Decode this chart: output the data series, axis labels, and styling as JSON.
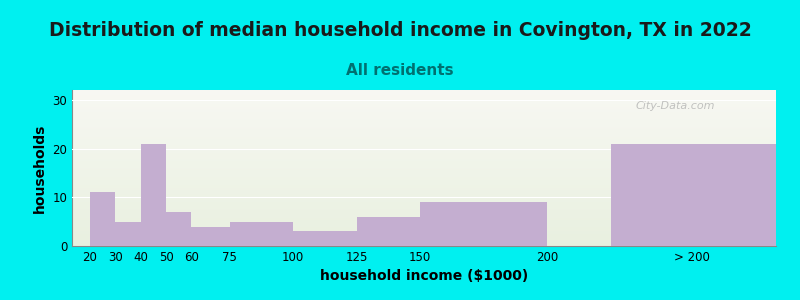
{
  "title": "Distribution of median household income in Covington, TX in 2022",
  "subtitle": "All residents",
  "xlabel": "household income ($1000)",
  "ylabel": "households",
  "categories": [
    "20",
    "30",
    "40",
    "50",
    "60",
    "75",
    "100",
    "125",
    "150",
    "200",
    "> 200"
  ],
  "values": [
    11,
    5,
    21,
    7,
    4,
    5,
    3,
    6,
    9,
    0,
    21
  ],
  "bar_color": "#c4aed0",
  "background_color": "#00f0f0",
  "ylim": [
    0,
    32
  ],
  "yticks": [
    0,
    10,
    20,
    30
  ],
  "title_fontsize": 13.5,
  "subtitle_fontsize": 11,
  "subtitle_color": "#007070",
  "axis_label_fontsize": 10,
  "tick_fontsize": 8.5,
  "watermark": "City-Data.com",
  "bar_positions": [
    20,
    30,
    40,
    50,
    60,
    75,
    100,
    125,
    150,
    200,
    225
  ],
  "bar_widths": [
    10,
    10,
    10,
    10,
    15,
    25,
    25,
    25,
    50,
    0,
    65
  ],
  "xlim": [
    13,
    290
  ],
  "xtick_positions": [
    20,
    30,
    40,
    50,
    60,
    75,
    100,
    125,
    150,
    200,
    257
  ],
  "xtick_labels": [
    "20",
    "30",
    "40",
    "50",
    "60",
    "75",
    "100",
    "125",
    "150",
    "200",
    "> 200"
  ]
}
